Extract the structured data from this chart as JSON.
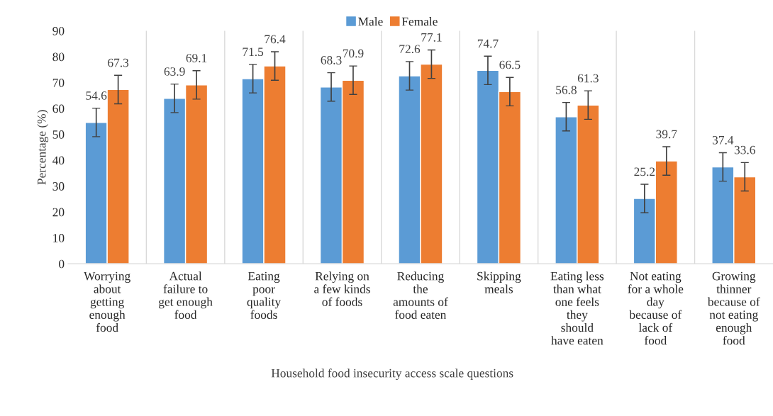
{
  "chart_data": {
    "type": "bar",
    "xlabel": "Household food insecurity access scale questions",
    "ylabel": "Percentage (%)",
    "categories": [
      "Worrying\nabout\ngetting\nenough\nfood",
      "Actual\nfailure to\nget enough\nfood",
      "Eating\npoor\nquality\nfoods",
      "Relying on\na few kinds\nof foods",
      "Reducing\nthe\namounts of\nfood eaten",
      "Skipping\nmeals",
      "Eating less\nthan what\none feels\nthey\nshould\nhave eaten",
      "Not eating\nfor a whole\nday\nbecause of\nlack of\nfood",
      "Growing\nthinner\nbecause of\nnot eating\nenough\nfood"
    ],
    "series": [
      {
        "name": "Male",
        "color": "#5b9bd5",
        "values": [
          54.6,
          63.9,
          71.5,
          68.3,
          72.6,
          74.7,
          56.8,
          25.2,
          37.4
        ],
        "errors": [
          5.5,
          5.5,
          5.5,
          5.5,
          5.5,
          5.5,
          5.5,
          5.5,
          5.5
        ]
      },
      {
        "name": "Female",
        "color": "#ed7d31",
        "values": [
          67.3,
          69.1,
          76.4,
          70.9,
          77.1,
          66.5,
          61.3,
          39.7,
          33.6
        ],
        "errors": [
          5.5,
          5.5,
          5.5,
          5.5,
          5.5,
          5.5,
          5.5,
          5.5,
          5.5
        ]
      }
    ],
    "ylim": [
      0,
      90
    ],
    "yticks": [
      0,
      10,
      20,
      30,
      40,
      50,
      60,
      70,
      80,
      90
    ],
    "grid": "x",
    "legend": "top",
    "data_labels": true
  }
}
